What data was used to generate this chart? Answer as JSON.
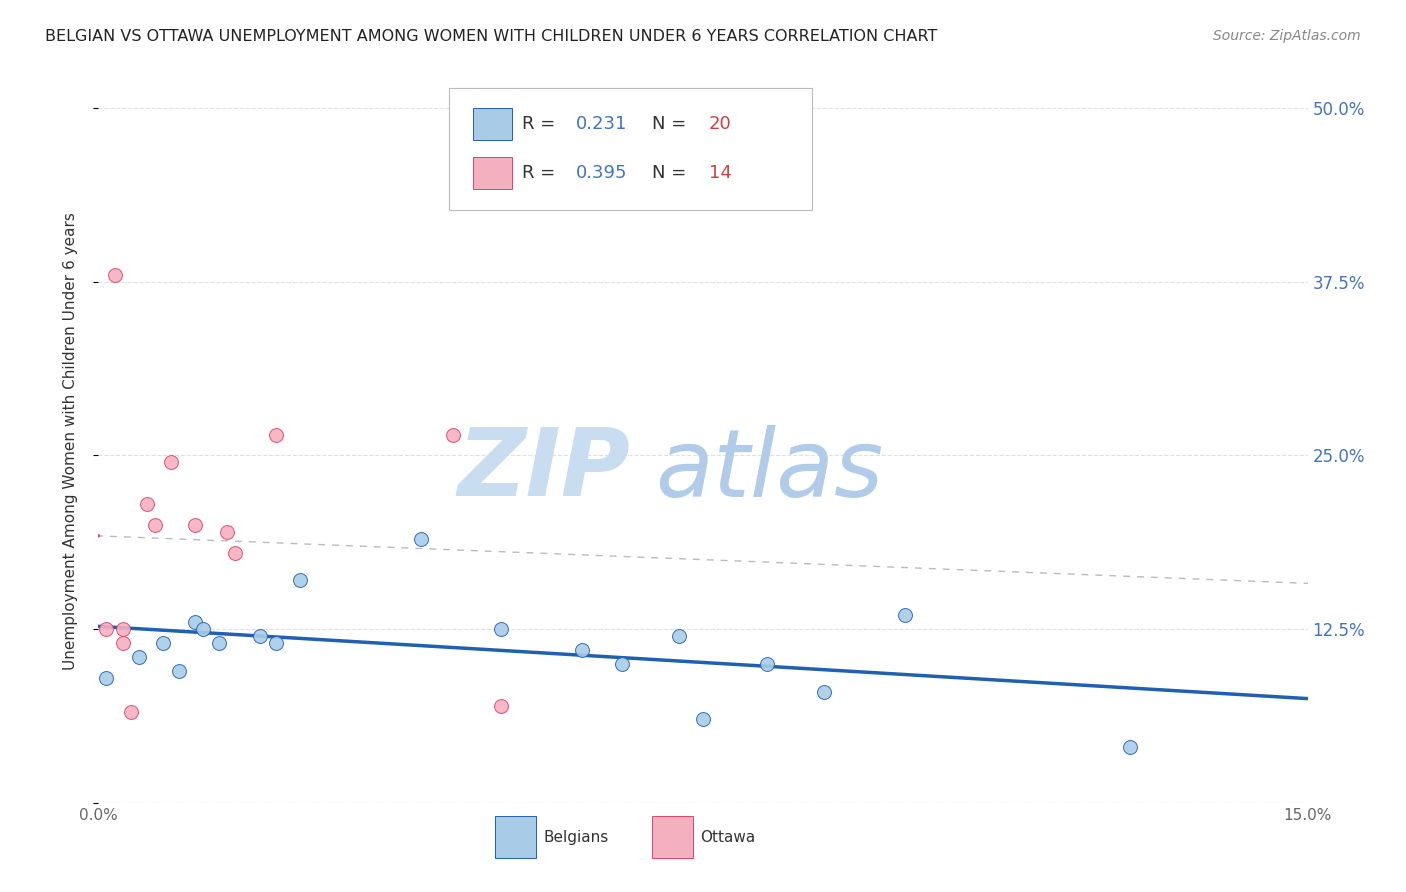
{
  "title": "BELGIAN VS OTTAWA UNEMPLOYMENT AMONG WOMEN WITH CHILDREN UNDER 6 YEARS CORRELATION CHART",
  "source": "Source: ZipAtlas.com",
  "ylabel": "Unemployment Among Women with Children Under 6 years",
  "xlim": [
    0.0,
    0.15
  ],
  "ylim": [
    0.0,
    0.52
  ],
  "yticks": [
    0.0,
    0.125,
    0.25,
    0.375,
    0.5
  ],
  "ytick_labels_right": [
    "",
    "12.5%",
    "25.0%",
    "37.5%",
    "50.0%"
  ],
  "xticks": [
    0.0,
    0.025,
    0.05,
    0.075,
    0.1,
    0.125,
    0.15
  ],
  "xtick_labels": [
    "0.0%",
    "",
    "",
    "",
    "",
    "",
    "15.0%"
  ],
  "belgians_x": [
    0.001,
    0.005,
    0.008,
    0.01,
    0.012,
    0.013,
    0.015,
    0.02,
    0.022,
    0.025,
    0.04,
    0.05,
    0.06,
    0.065,
    0.072,
    0.075,
    0.083,
    0.09,
    0.1,
    0.128
  ],
  "belgians_y": [
    0.09,
    0.105,
    0.115,
    0.095,
    0.13,
    0.125,
    0.115,
    0.12,
    0.115,
    0.16,
    0.19,
    0.125,
    0.11,
    0.1,
    0.12,
    0.06,
    0.1,
    0.08,
    0.135,
    0.04
  ],
  "ottawa_x": [
    0.001,
    0.002,
    0.003,
    0.003,
    0.004,
    0.006,
    0.007,
    0.009,
    0.012,
    0.016,
    0.017,
    0.022,
    0.044,
    0.05
  ],
  "ottawa_y": [
    0.125,
    0.38,
    0.125,
    0.115,
    0.065,
    0.215,
    0.2,
    0.245,
    0.2,
    0.195,
    0.18,
    0.265,
    0.265,
    0.07
  ],
  "belgians_R": 0.231,
  "belgians_N": 20,
  "ottawa_R": 0.395,
  "ottawa_N": 14,
  "belgians_scatter_color": "#a8cce8",
  "belgians_line_color": "#2060b0",
  "ottawa_scatter_color": "#f5b0c0",
  "ottawa_line_color": "#e04070",
  "watermark_line1": "ZIP",
  "watermark_line2": "atlas",
  "watermark_color": "#ddeeff",
  "background_color": "#ffffff",
  "grid_color": "#e0e0e0",
  "title_color": "#222222",
  "right_axis_color": "#4472c4",
  "marker_size": 100
}
